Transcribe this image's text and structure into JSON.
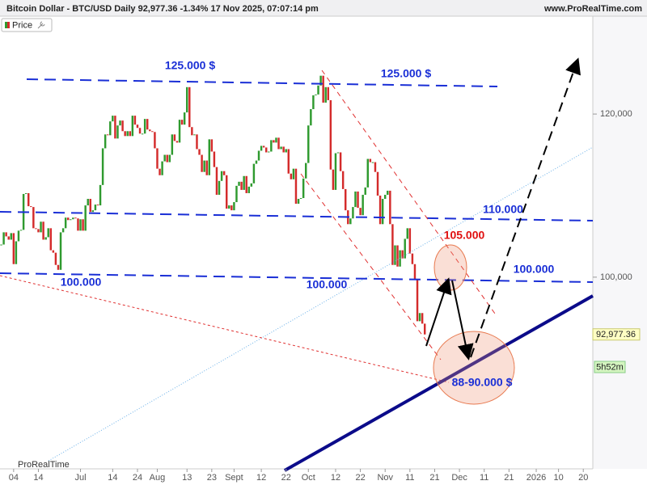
{
  "chart_data": {
    "type": "candlestick",
    "title": "Bitcoin Dollar - BTC/USD Daily 92,977.36 -1.34% 17 Nov 2025, 07:07:14 pm",
    "source": "www.ProRealTime.com",
    "legend": "Price",
    "brand": "ProRealTime",
    "up_color": "#2f9a2f",
    "down_color": "#d42b2b",
    "categories": [
      null,
      null,
      null,
      null,
      null,
      "04",
      null,
      null,
      null,
      null,
      null,
      null,
      null,
      null,
      null,
      "14",
      null,
      null,
      null,
      null,
      null,
      null,
      null,
      null,
      null,
      null,
      null,
      null,
      null,
      null,
      null,
      null,
      "Jul",
      null,
      null,
      null,
      null,
      null,
      null,
      null,
      null,
      null,
      null,
      null,
      null,
      "14",
      null,
      null,
      null,
      null,
      null,
      null,
      null,
      null,
      null,
      "24",
      null,
      null,
      null,
      null,
      null,
      null,
      null,
      "Aug",
      null,
      null,
      null,
      null,
      null,
      null,
      null,
      null,
      null,
      null,
      null,
      "13",
      null,
      null,
      null,
      null,
      null,
      null,
      null,
      null,
      null,
      "23",
      null,
      null,
      null,
      null,
      null,
      null,
      null,
      null,
      "Sept",
      null,
      null,
      null,
      null,
      null,
      null,
      null,
      null,
      null,
      null,
      "12",
      null,
      null,
      null,
      null,
      null,
      null,
      null,
      null,
      null,
      "22",
      null,
      null,
      null,
      null,
      null,
      null,
      null,
      null,
      "Oct",
      null,
      null,
      null,
      null,
      null,
      null,
      null,
      null,
      null,
      null,
      "12",
      null,
      null,
      null,
      null,
      null,
      null,
      null,
      null,
      null,
      "22",
      null,
      null,
      null,
      null,
      null,
      null,
      null,
      null,
      null,
      "Nov",
      null,
      null,
      null,
      null,
      null,
      null,
      null,
      null,
      null,
      "11",
      null,
      null,
      null,
      null,
      null,
      null,
      null,
      null,
      null,
      "21",
      null,
      null,
      null,
      null,
      null,
      null,
      null,
      null,
      null,
      "Dec",
      null,
      null,
      null,
      null,
      null,
      null,
      null,
      null,
      null,
      "11",
      null,
      null,
      null,
      null,
      null,
      null,
      null,
      null,
      null,
      "21",
      null,
      null,
      null,
      null,
      null,
      null,
      null,
      null,
      null,
      null,
      "2026",
      null,
      null,
      null,
      null,
      null,
      null,
      null,
      null,
      "10",
      null,
      null,
      null,
      null,
      null,
      null,
      null,
      null,
      null,
      "20",
      null,
      null,
      null,
      null
    ],
    "values": [
      104000,
      105500,
      105000,
      104600,
      105400,
      101600,
      104400,
      105700,
      105800,
      110200,
      110300,
      108700,
      108600,
      106000,
      105900,
      105500,
      106800,
      104600,
      104900,
      106000,
      103300,
      103000,
      101500,
      100900,
      105500,
      106000,
      107300,
      107000,
      107100,
      107300,
      107200,
      105700,
      107100,
      105700,
      108800,
      109600,
      108000,
      108200,
      108900,
      108800,
      111300,
      115800,
      117500,
      117400,
      119100,
      119800,
      117000,
      118600,
      119200,
      117900,
      117300,
      117900,
      117300,
      119800,
      118700,
      118300,
      117600,
      117600,
      119400,
      118100,
      117900,
      117800,
      115800,
      113300,
      112500,
      114200,
      115000,
      114100,
      115000,
      117500,
      116700,
      116500,
      119300,
      118700,
      120200,
      123300,
      118400,
      117400,
      117500,
      115700,
      115000,
      112900,
      114300,
      112500,
      116900,
      115400,
      113500,
      110100,
      111800,
      113000,
      112500,
      108400,
      108800,
      108200,
      109200,
      111200,
      111700,
      110700,
      112400,
      110300,
      111100,
      111500,
      113900,
      114300,
      115500,
      116100,
      115900,
      115300,
      115400,
      116800,
      116500,
      117100,
      115700,
      116000,
      115300,
      115700,
      112700,
      112000,
      113300,
      109000,
      109600,
      109700,
      112100,
      114000,
      118600,
      120600,
      122300,
      122400,
      123500,
      124700,
      121400,
      123300,
      121700,
      113200,
      110700,
      115200,
      115300,
      113000,
      110800,
      108200,
      106500,
      107200,
      108600,
      110500,
      108500,
      107600,
      110100,
      111000,
      114500,
      114100,
      114100,
      112900,
      110000,
      106500,
      109600,
      110100,
      110600,
      106500,
      101500,
      103900,
      101300,
      103300,
      102300,
      104700,
      106000,
      102900,
      101600,
      99700,
      94600,
      95600,
      94300,
      92977.36,
      null,
      null,
      null,
      null,
      null,
      null,
      null,
      null,
      null,
      null,
      null,
      null,
      null,
      null,
      null,
      null,
      null,
      null,
      null,
      null,
      null,
      null,
      null,
      null,
      null,
      null,
      null,
      null,
      null,
      null,
      null,
      null,
      null,
      null,
      null,
      null,
      null,
      null,
      null,
      null,
      null,
      null,
      null,
      null,
      null,
      null,
      null,
      null,
      null,
      null,
      null,
      null,
      null,
      null,
      null,
      null,
      null,
      null,
      null,
      null,
      null,
      null,
      null,
      null,
      null,
      null,
      null,
      null
    ],
    "ylim": [
      76500,
      132000
    ],
    "yticks": [
      {
        "value": 100000,
        "label": "100,000"
      },
      {
        "value": 120000,
        "label": "120,000"
      }
    ],
    "price_flag": {
      "value": 92977.36,
      "label": "92,977.36"
    },
    "countdown": "5h52m",
    "annotations": [
      "125.000 $",
      "125.000 $",
      "110.000",
      "100.000",
      "100.000",
      "100.000",
      "105.000",
      "88-90.000 $"
    ]
  }
}
